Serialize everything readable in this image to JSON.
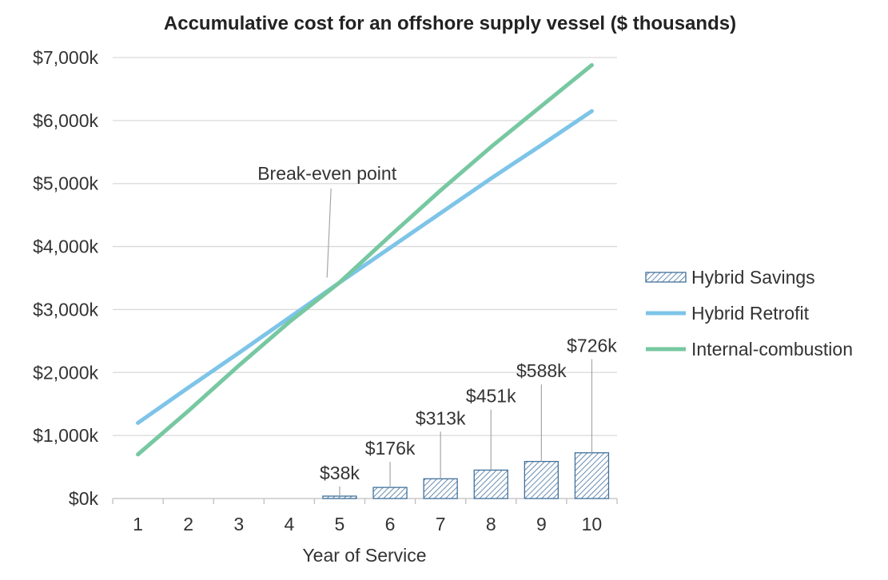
{
  "chart_data": {
    "type": "bar",
    "title": "Accumulative cost for an offshore supply vessel ($ thousands)",
    "xlabel": "Year of Service",
    "ylabel": "",
    "categories": [
      "1",
      "2",
      "3",
      "4",
      "5",
      "6",
      "7",
      "8",
      "9",
      "10"
    ],
    "ylim": [
      0,
      7000
    ],
    "y_ticks": [
      0,
      1000,
      2000,
      3000,
      4000,
      5000,
      6000,
      7000
    ],
    "y_tick_labels": [
      "$0k",
      "$1,000k",
      "$2,000k",
      "$3,000k",
      "$4,000k",
      "$5,000k",
      "$6,000k",
      "$7,000k"
    ],
    "grid": true,
    "legend_position": "right",
    "series": [
      {
        "name": "Hybrid Savings",
        "type": "bar",
        "pattern": "hatched",
        "color": "#41719C",
        "values": [
          0,
          0,
          0,
          0,
          38,
          176,
          313,
          451,
          588,
          726
        ],
        "data_labels": [
          "",
          "",
          "",
          "",
          "$38k",
          "$176k",
          "$313k",
          "$451k",
          "$588k",
          "$726k"
        ]
      },
      {
        "name": "Hybrid Retrofit",
        "type": "line",
        "color": "#7DC4E8",
        "values": [
          1200,
          1760,
          2310,
          2870,
          3430,
          3980,
          4530,
          5080,
          5610,
          6150
        ]
      },
      {
        "name": "Internal-combustion",
        "type": "line",
        "color": "#77C8A1",
        "values": [
          700,
          1390,
          2110,
          2800,
          3430,
          4170,
          4890,
          5580,
          6230,
          6880
        ]
      }
    ],
    "annotations": [
      {
        "text": "Break-even point",
        "x": 4.75,
        "y": 3430
      }
    ]
  }
}
